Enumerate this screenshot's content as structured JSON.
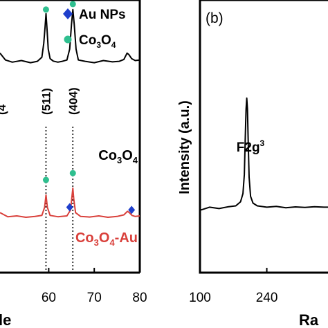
{
  "chart_data": [
    {
      "type": "line",
      "panel": "",
      "xlabel_fragment": "le",
      "x_ticks": [
        "60",
        "70",
        "80"
      ],
      "x_tick_values": [
        60,
        70,
        80
      ],
      "xlim": [
        49.3,
        80
      ],
      "ylim": [
        0,
        100
      ],
      "legend": {
        "placement": "top-right",
        "entries": [
          {
            "label": "Au NPs",
            "marker": "diamond",
            "color": "#1f3fcc"
          },
          {
            "label": "Co3O4",
            "label_main": "Co",
            "label_sub1": "3",
            "label_mid": "O",
            "label_sub2": "4",
            "marker": "circle",
            "color": "#2fbf8f"
          }
        ]
      },
      "peak_labels": [
        {
          "text": "(4",
          "x": 49.6
        },
        {
          "text": "(511)",
          "x": 59.4
        },
        {
          "text": "(404)",
          "x": 65.3
        }
      ],
      "dotted_lines_x": [
        59.4,
        65.3
      ],
      "series": [
        {
          "name": "Co3O4",
          "label_main": "Co",
          "label_sub1": "3",
          "label_mid": "O",
          "label_sub2": "4",
          "color": "#000000",
          "x": [
            49.3,
            50.5,
            52,
            54,
            56,
            57.5,
            58.5,
            58.9,
            59.2,
            59.4,
            59.6,
            59.9,
            60.3,
            61,
            62,
            63,
            64,
            64.6,
            65,
            65.3,
            65.6,
            66,
            66.5,
            68,
            70,
            72,
            74,
            75.5,
            76.5,
            77.2,
            77.6,
            78.2,
            79,
            80
          ],
          "y": [
            80.5,
            78,
            77.2,
            77.8,
            77.0,
            77.5,
            79,
            84,
            90,
            95,
            90,
            82,
            78.5,
            77.6,
            77.2,
            77.5,
            78,
            82,
            91,
            96.5,
            91,
            82,
            78,
            77.5,
            77,
            77.8,
            77.3,
            77.5,
            78.2,
            80.5,
            80,
            78.5,
            77.8,
            78
          ]
        },
        {
          "name": "Co3O4-Au",
          "label_main": "Co",
          "label_sub1": "3",
          "label_mid": "O",
          "label_sub2": "4",
          "label_suffix": "-Au",
          "color": "#d9403b",
          "x": [
            49.3,
            51,
            53,
            55,
            57,
            58.5,
            59.1,
            59.4,
            59.7,
            60.3,
            62,
            64,
            64.8,
            65.1,
            65.3,
            65.5,
            65.9,
            67,
            69,
            71,
            73,
            75,
            76.5,
            77.3,
            77.7,
            78.3,
            79,
            80
          ],
          "y": [
            22,
            20.5,
            20.8,
            20.3,
            20.6,
            21,
            24,
            28.5,
            24,
            21,
            20.5,
            20.8,
            23,
            28,
            31,
            27,
            22,
            20.6,
            20.4,
            20.8,
            20.3,
            20.6,
            21.2,
            22.5,
            22,
            21,
            20.6,
            20.8
          ]
        }
      ],
      "markers": [
        {
          "series": "Co3O4",
          "type": "circle",
          "x": 59.4,
          "y": 96.5
        },
        {
          "series": "Co3O4",
          "type": "circle",
          "x": 65.3,
          "y": 98.5
        },
        {
          "series": "Co3O4-Au",
          "type": "circle",
          "x": 59.4,
          "y": 34
        },
        {
          "series": "Co3O4-Au",
          "type": "circle",
          "x": 65.3,
          "y": 36.5
        },
        {
          "series": "Co3O4-Au",
          "type": "diamond",
          "x": 64.6,
          "y": 24
        },
        {
          "series": "Co3O4-Au",
          "type": "diamond",
          "x": 78.2,
          "y": 23
        }
      ]
    },
    {
      "type": "line",
      "panel": "(b)",
      "ylabel": "Intensity (a.u.)",
      "xlabel_fragment": "Ra",
      "x_ticks": [
        "100",
        "240"
      ],
      "x_tick_values": [
        100,
        240
      ],
      "xlim": [
        100,
        390
      ],
      "ylim": [
        0,
        100
      ],
      "peak_labels": [
        {
          "text_main": "F2g",
          "text_sup": "3",
          "x": 198
        }
      ],
      "series": [
        {
          "name": "",
          "color": "#000000",
          "x": [
            102,
            120,
            140,
            160,
            175,
            185,
            190,
            193,
            195,
            196.5,
            198,
            199.5,
            201,
            203,
            206,
            211,
            220,
            240,
            260,
            280,
            300,
            320,
            340,
            360,
            390
          ],
          "y": [
            23,
            24,
            23.5,
            24.2,
            24.5,
            26,
            29,
            36,
            50,
            60,
            64,
            60,
            48,
            35,
            28,
            25.5,
            24.5,
            24,
            24.3,
            23.8,
            24.1,
            23.9,
            24.2,
            24,
            24
          ]
        }
      ]
    }
  ]
}
